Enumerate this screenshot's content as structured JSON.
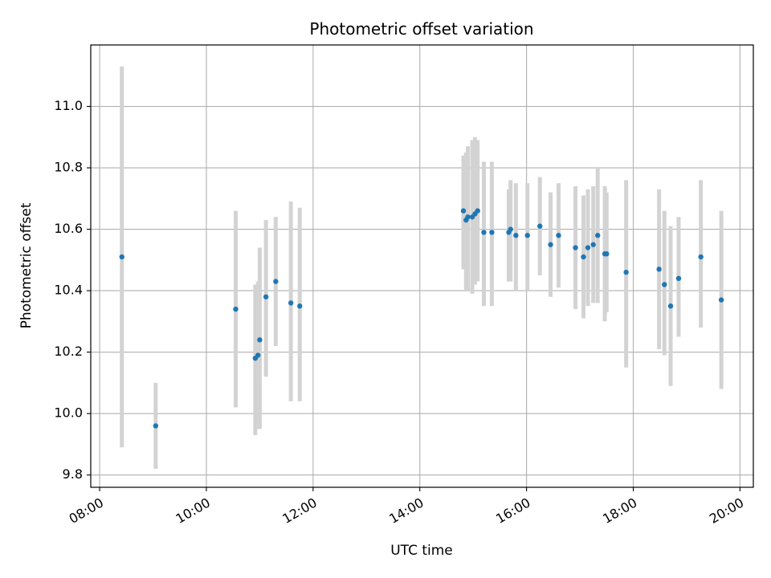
{
  "chart_data": {
    "type": "scatter",
    "title": "Photometric offset variation",
    "xlabel": "UTC time",
    "ylabel": "Photometric offset",
    "x_ticks": [
      "08:00",
      "10:00",
      "12:00",
      "14:00",
      "16:00",
      "18:00",
      "20:00"
    ],
    "y_ticks": [
      "9.8",
      "10.0",
      "10.2",
      "10.4",
      "10.6",
      "10.8",
      "11.0"
    ],
    "xlim": [
      "07:50",
      "20:15"
    ],
    "ylim": [
      9.76,
      11.2
    ],
    "grid": true,
    "colors": {
      "points": "#1f77b4",
      "errorbars": "#d3d3d3",
      "grid": "#b0b0b0"
    },
    "points": [
      {
        "x": "08:25",
        "y": 10.51,
        "y_low": 9.89,
        "y_high": 11.13
      },
      {
        "x": "09:03",
        "y": 9.96,
        "y_low": 9.82,
        "y_high": 10.1
      },
      {
        "x": "10:33",
        "y": 10.34,
        "y_low": 10.02,
        "y_high": 10.66
      },
      {
        "x": "10:55",
        "y": 10.18,
        "y_low": 9.93,
        "y_high": 10.42
      },
      {
        "x": "10:58",
        "y": 10.19,
        "y_low": 9.95,
        "y_high": 10.43
      },
      {
        "x": "11:00",
        "y": 10.24,
        "y_low": 9.95,
        "y_high": 10.54
      },
      {
        "x": "11:07",
        "y": 10.38,
        "y_low": 10.12,
        "y_high": 10.63
      },
      {
        "x": "11:18",
        "y": 10.43,
        "y_low": 10.22,
        "y_high": 10.64
      },
      {
        "x": "11:35",
        "y": 10.36,
        "y_low": 10.04,
        "y_high": 10.69
      },
      {
        "x": "11:45",
        "y": 10.35,
        "y_low": 10.04,
        "y_high": 10.67
      },
      {
        "x": "14:49",
        "y": 10.66,
        "y_low": 10.47,
        "y_high": 10.84
      },
      {
        "x": "14:52",
        "y": 10.63,
        "y_low": 10.4,
        "y_high": 10.85
      },
      {
        "x": "14:54",
        "y": 10.64,
        "y_low": 10.4,
        "y_high": 10.87
      },
      {
        "x": "14:59",
        "y": 10.64,
        "y_low": 10.39,
        "y_high": 10.89
      },
      {
        "x": "15:02",
        "y": 10.65,
        "y_low": 10.42,
        "y_high": 10.9
      },
      {
        "x": "15:05",
        "y": 10.66,
        "y_low": 10.43,
        "y_high": 10.89
      },
      {
        "x": "15:12",
        "y": 10.59,
        "y_low": 10.35,
        "y_high": 10.82
      },
      {
        "x": "15:21",
        "y": 10.59,
        "y_low": 10.35,
        "y_high": 10.82
      },
      {
        "x": "15:40",
        "y": 10.59,
        "y_low": 10.43,
        "y_high": 10.73
      },
      {
        "x": "15:42",
        "y": 10.6,
        "y_low": 10.43,
        "y_high": 10.76
      },
      {
        "x": "15:48",
        "y": 10.58,
        "y_low": 10.4,
        "y_high": 10.75
      },
      {
        "x": "16:01",
        "y": 10.58,
        "y_low": 10.4,
        "y_high": 10.75
      },
      {
        "x": "16:15",
        "y": 10.61,
        "y_low": 10.45,
        "y_high": 10.77
      },
      {
        "x": "16:27",
        "y": 10.55,
        "y_low": 10.38,
        "y_high": 10.72
      },
      {
        "x": "16:36",
        "y": 10.58,
        "y_low": 10.41,
        "y_high": 10.75
      },
      {
        "x": "16:55",
        "y": 10.54,
        "y_low": 10.34,
        "y_high": 10.74
      },
      {
        "x": "17:04",
        "y": 10.51,
        "y_low": 10.31,
        "y_high": 10.71
      },
      {
        "x": "17:09",
        "y": 10.54,
        "y_low": 10.35,
        "y_high": 10.73
      },
      {
        "x": "17:15",
        "y": 10.55,
        "y_low": 10.36,
        "y_high": 10.74
      },
      {
        "x": "17:20",
        "y": 10.58,
        "y_low": 10.36,
        "y_high": 10.8
      },
      {
        "x": "17:28",
        "y": 10.52,
        "y_low": 10.3,
        "y_high": 10.74
      },
      {
        "x": "17:30",
        "y": 10.52,
        "y_low": 10.33,
        "y_high": 10.72
      },
      {
        "x": "17:52",
        "y": 10.46,
        "y_low": 10.15,
        "y_high": 10.76
      },
      {
        "x": "18:29",
        "y": 10.47,
        "y_low": 10.21,
        "y_high": 10.73
      },
      {
        "x": "18:35",
        "y": 10.42,
        "y_low": 10.19,
        "y_high": 10.66
      },
      {
        "x": "18:42",
        "y": 10.35,
        "y_low": 10.09,
        "y_high": 10.61
      },
      {
        "x": "18:51",
        "y": 10.44,
        "y_low": 10.25,
        "y_high": 10.64
      },
      {
        "x": "19:16",
        "y": 10.51,
        "y_low": 10.28,
        "y_high": 10.76
      },
      {
        "x": "19:39",
        "y": 10.37,
        "y_low": 10.08,
        "y_high": 10.66
      }
    ]
  }
}
